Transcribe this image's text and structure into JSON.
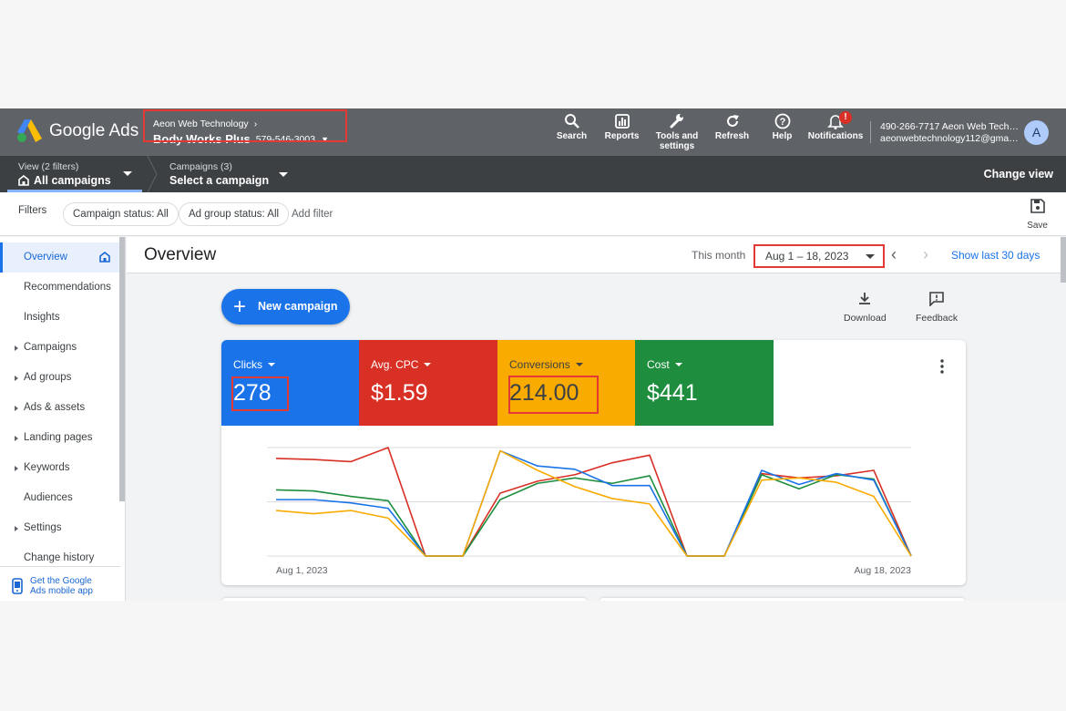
{
  "app": {
    "logo_text": "Google Ads",
    "account_parent": "Aeon Web Technology",
    "account_name": "Body Works Plus",
    "account_id": "579-546-3003"
  },
  "toolbar": [
    {
      "label": "Search",
      "icon": "search-icon"
    },
    {
      "label": "Reports",
      "icon": "reports-icon"
    },
    {
      "label": "Tools and settings",
      "icon": "wrench-icon"
    },
    {
      "label": "Refresh",
      "icon": "refresh-icon"
    },
    {
      "label": "Help",
      "icon": "help-icon"
    },
    {
      "label": "Notifications",
      "icon": "bell-icon",
      "badge": "!"
    }
  ],
  "user": {
    "phone_name": "490-266-7717 Aeon Web Tech…",
    "email": "aeonwebtechnology112@gma…",
    "avatar": "A"
  },
  "navbar": {
    "view_label": "View (2 filters)",
    "view_value": "All campaigns",
    "campaigns_label": "Campaigns (3)",
    "campaigns_value": "Select a campaign",
    "change_view": "Change view"
  },
  "filters": {
    "label": "Filters",
    "chips": [
      "Campaign status: All",
      "Ad group status: All"
    ],
    "add_filter": "Add filter",
    "save": "Save"
  },
  "sidebar": {
    "items": [
      {
        "label": "Overview",
        "active": true,
        "expandable": false
      },
      {
        "label": "Recommendations",
        "expandable": false
      },
      {
        "label": "Insights",
        "expandable": false
      },
      {
        "label": "Campaigns",
        "expandable": true
      },
      {
        "label": "Ad groups",
        "expandable": true
      },
      {
        "label": "Ads & assets",
        "expandable": true
      },
      {
        "label": "Landing pages",
        "expandable": true
      },
      {
        "label": "Keywords",
        "expandable": true
      },
      {
        "label": "Audiences",
        "expandable": false
      },
      {
        "label": "Settings",
        "expandable": true
      },
      {
        "label": "Change history",
        "expandable": false
      }
    ],
    "mobile_app_line1": "Get the Google",
    "mobile_app_line2": "Ads mobile app"
  },
  "overview": {
    "title": "Overview",
    "period_label": "This month",
    "date_range": "Aug 1 – 18, 2023",
    "show_last": "Show last 30 days",
    "new_campaign": "New campaign",
    "download": "Download",
    "feedback": "Feedback"
  },
  "metrics": [
    {
      "name": "Clicks",
      "value": "278",
      "color": "#1a73e8"
    },
    {
      "name": "Avg. CPC",
      "value": "$1.59",
      "color": "#d93025"
    },
    {
      "name": "Conversions",
      "value": "214.00",
      "color": "#f9ab00"
    },
    {
      "name": "Cost",
      "value": "$441",
      "color": "#1e8e3e"
    }
  ],
  "chart_data": {
    "type": "line",
    "x": [
      "Aug 1, 2023",
      "Aug 2",
      "Aug 3",
      "Aug 4",
      "Aug 5",
      "Aug 6",
      "Aug 7",
      "Aug 8",
      "Aug 9",
      "Aug 10",
      "Aug 11",
      "Aug 12",
      "Aug 13",
      "Aug 14",
      "Aug 15",
      "Aug 16",
      "Aug 17",
      "Aug 18, 2023"
    ],
    "x_tick_labels": [
      "Aug 1, 2023",
      "Aug 18, 2023"
    ],
    "grid": true,
    "normalized": true,
    "ylim": [
      0,
      1
    ],
    "series": [
      {
        "color": "#d93025",
        "values": [
          0.9,
          0.89,
          0.87,
          1.0,
          0,
          0,
          0.58,
          0.69,
          0.75,
          0.86,
          0.93,
          0,
          0,
          0.76,
          0.72,
          0.74,
          0.79,
          0
        ]
      },
      {
        "color": "#1e8e3e",
        "values": [
          0.61,
          0.6,
          0.55,
          0.51,
          0,
          0,
          0.52,
          0.67,
          0.72,
          0.67,
          0.74,
          0,
          0,
          0.75,
          0.62,
          0.75,
          0.71,
          0
        ]
      },
      {
        "color": "#1a73e8",
        "values": [
          0.52,
          0.52,
          0.49,
          0.44,
          0,
          0,
          0.97,
          0.83,
          0.8,
          0.65,
          0.65,
          0,
          0,
          0.79,
          0.66,
          0.76,
          0.7,
          0
        ]
      },
      {
        "color": "#f9ab00",
        "values": [
          0.42,
          0.39,
          0.42,
          0.35,
          0,
          0,
          0.97,
          0.79,
          0.64,
          0.53,
          0.48,
          0,
          0,
          0.7,
          0.72,
          0.68,
          0.55,
          0
        ]
      }
    ]
  }
}
